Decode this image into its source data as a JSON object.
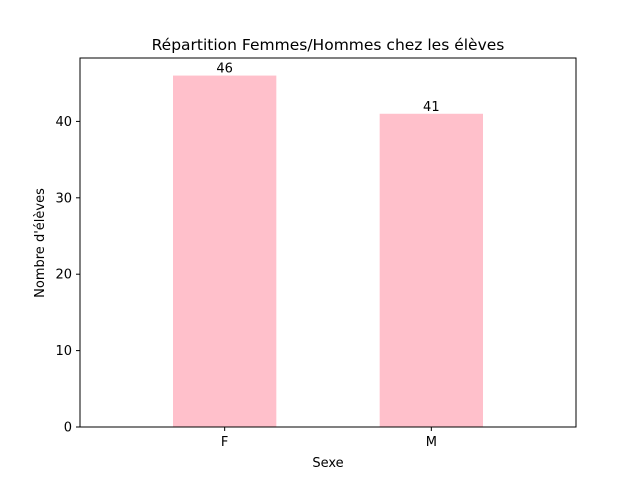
{
  "chart_data": {
    "type": "bar",
    "title": "Répartition Femmes/Hommes chez les élèves",
    "xlabel": "Sexe",
    "ylabel": "Nombre d'élèves",
    "categories": [
      "F",
      "M"
    ],
    "values": [
      46,
      41
    ],
    "data_labels": [
      "46",
      "41"
    ],
    "ylim": [
      0,
      48.3
    ],
    "yticks": [
      0,
      10,
      20,
      30,
      40
    ],
    "grid": false,
    "legend": "none",
    "bar_color": "#ffc0cb"
  }
}
